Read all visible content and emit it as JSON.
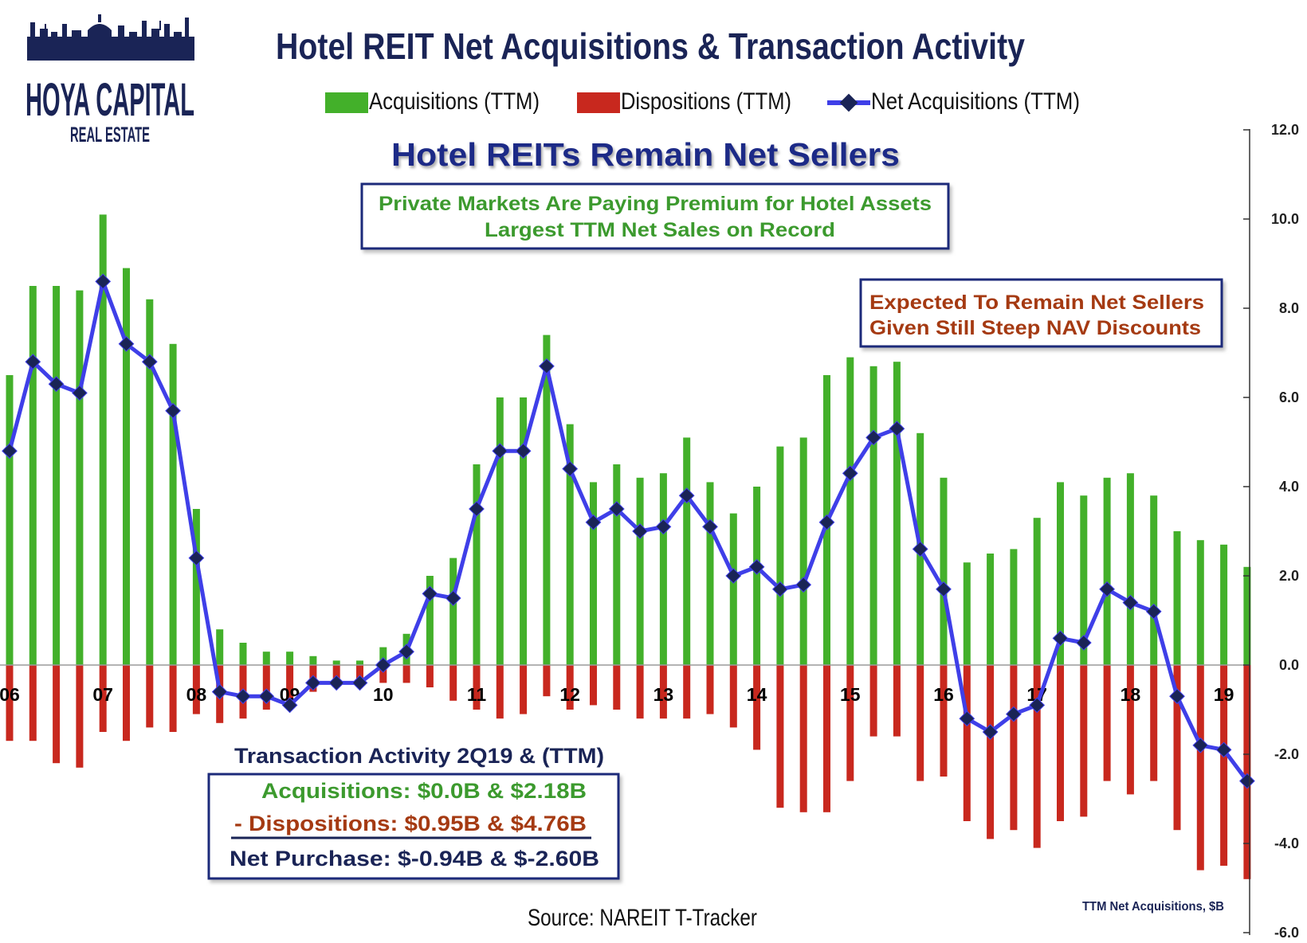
{
  "logo": {
    "name": "HOYA CAPITAL",
    "sub": "REAL ESTATE"
  },
  "chart_data": {
    "type": "bar",
    "title": "Hotel REIT Net Acquisitions & Transaction Activity",
    "subtitle": "Hotel REITs Remain Net Sellers",
    "legend": {
      "placement": "top",
      "entries": [
        "Acquisitions (TTM)",
        "Dispositions (TTM)",
        "Net Acquisitions (TTM)"
      ]
    },
    "x_tick_labels": [
      "06",
      "07",
      "08",
      "09",
      "10",
      "11",
      "12",
      "13",
      "14",
      "15",
      "16",
      "17",
      "18",
      "19"
    ],
    "y_axis": {
      "position": "right",
      "ylim": [
        -6,
        12
      ],
      "tick_labels": [
        "12.0",
        "10.0",
        "8.0",
        "6.0",
        "4.0",
        "2.0",
        "0.0",
        "-2.0",
        "-4.0",
        "-6.0"
      ],
      "label": "TTM Net Acquisitions, $B"
    },
    "grid": false,
    "series": [
      {
        "name": "Acquisitions (TTM)",
        "color": "#43b02a",
        "values": [
          6.5,
          8.5,
          8.5,
          8.4,
          10.1,
          8.9,
          8.2,
          7.2,
          3.5,
          0.8,
          0.5,
          0.3,
          0.3,
          0.2,
          0.1,
          0.1,
          0.4,
          0.7,
          2.0,
          2.4,
          4.5,
          6.0,
          6.0,
          7.4,
          5.4,
          4.1,
          4.5,
          4.2,
          4.3,
          5.1,
          4.1,
          3.4,
          4.0,
          4.9,
          5.1,
          6.5,
          6.9,
          6.7,
          6.8,
          5.2,
          4.2,
          2.3,
          2.5,
          2.6,
          3.3,
          4.1,
          3.8,
          4.2,
          4.3,
          3.8,
          3.0,
          2.8,
          2.7,
          2.2
        ]
      },
      {
        "name": "Dispositions (TTM)",
        "color": "#c8281e",
        "values": [
          -1.7,
          -1.7,
          -2.2,
          -2.3,
          -1.5,
          -1.7,
          -1.4,
          -1.5,
          -1.1,
          -1.3,
          -1.2,
          -1.0,
          -0.9,
          -0.6,
          -0.5,
          -0.4,
          -0.4,
          -0.4,
          -0.5,
          -0.8,
          -1.0,
          -1.2,
          -1.1,
          -0.7,
          -1.0,
          -0.9,
          -1.0,
          -1.2,
          -1.2,
          -1.2,
          -1.1,
          -1.4,
          -1.9,
          -3.2,
          -3.3,
          -3.3,
          -2.6,
          -1.6,
          -1.6,
          -2.6,
          -2.5,
          -3.5,
          -3.9,
          -3.7,
          -4.1,
          -3.5,
          -3.4,
          -2.6,
          -2.9,
          -2.6,
          -3.7,
          -4.6,
          -4.5,
          -4.8
        ]
      },
      {
        "name": "Net Acquisitions (TTM)",
        "color": "#3f3fe8",
        "values": [
          4.8,
          6.8,
          6.3,
          6.1,
          8.6,
          7.2,
          6.8,
          5.7,
          2.4,
          -0.6,
          -0.7,
          -0.7,
          -0.9,
          -0.4,
          -0.4,
          -0.4,
          0.0,
          0.3,
          1.6,
          1.5,
          3.5,
          4.8,
          4.8,
          6.7,
          4.4,
          3.2,
          3.5,
          3.0,
          3.1,
          3.8,
          3.1,
          2.0,
          2.2,
          1.7,
          1.8,
          3.2,
          4.3,
          5.1,
          5.3,
          2.6,
          1.7,
          -1.2,
          -1.5,
          -1.1,
          -0.9,
          0.6,
          0.5,
          1.7,
          1.4,
          1.2,
          -0.7,
          -1.8,
          -1.9,
          -2.6
        ]
      }
    ],
    "annotations": [
      {
        "lines": [
          "Private Markets Are Paying Premium for Hotel Assets",
          "Largest TTM Net Sales on Record"
        ],
        "color": "#3c9a2e"
      },
      {
        "lines": [
          "Expected To Remain Net Sellers",
          "Given Still Steep NAV Discounts"
        ],
        "color": "#a53a12"
      }
    ],
    "summary": {
      "heading": "Transaction Activity 2Q19 & (TTM)",
      "acquisitions": "Acquisitions: $0.0B  &  $2.18B",
      "dispositions": "- Dispositions: $0.95B  &  $4.76B",
      "net": "Net Purchase: $-0.94B  &  $-2.60B"
    },
    "source": "Source: NAREIT T-Tracker"
  }
}
